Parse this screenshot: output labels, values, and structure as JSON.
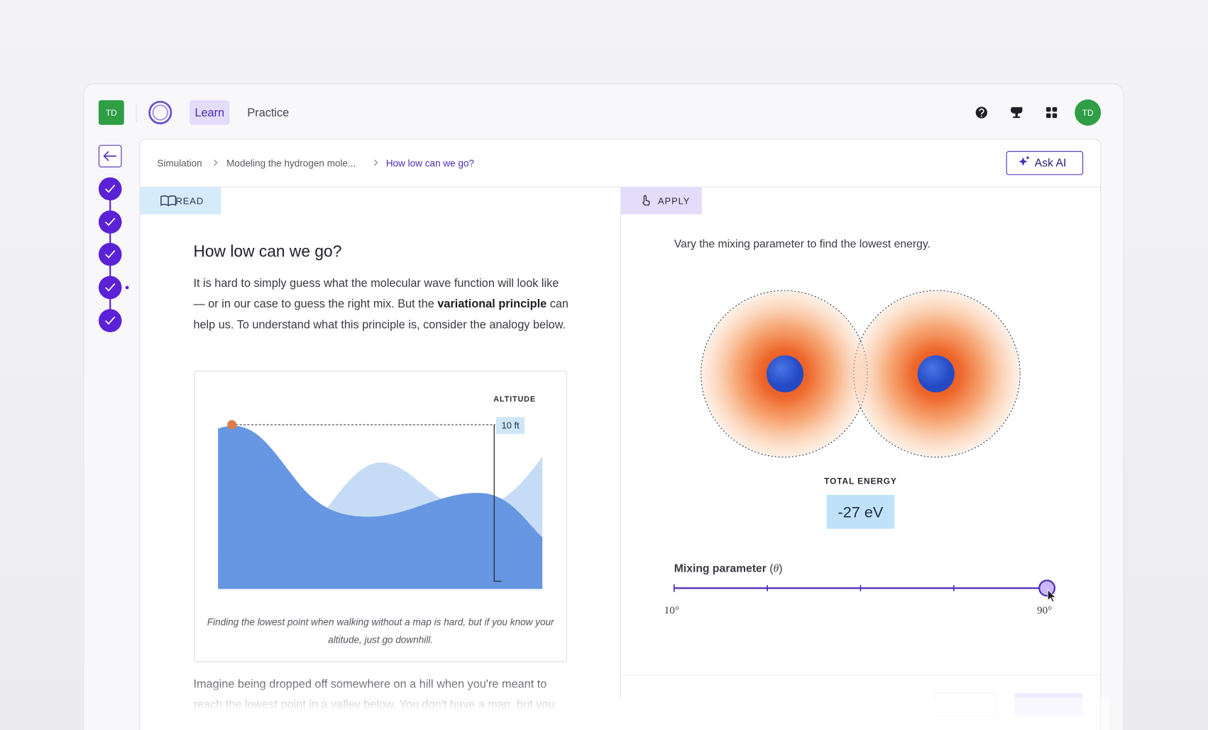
{
  "nav": {
    "avatar": "TD",
    "tabs": [
      "Learn",
      "Practice"
    ],
    "user_avatar": "TD"
  },
  "breadcrumb": [
    "Simulation",
    "Modeling the hydrogen mole...",
    "How low can we go?"
  ],
  "ask_ai": "Ask AI",
  "read": {
    "tab": "READ",
    "title": "How low can we go?",
    "paragraph": {
      "before": "It is hard to simply guess what the molecular wave function will look like — or in our case to guess the right mix. But the ",
      "bold": "variational principle",
      "after": " can help us. To understand what this principle is, consider the analogy below."
    },
    "figure": {
      "label": "ALTITUDE",
      "value": "10 ft",
      "caption": "Finding the lowest point when walking without a map is hard, but if you know your altitude, just go downhill."
    },
    "continuation": "Imagine being dropped off somewhere on a hill when you're meant to reach the lowest point in a valley below. You don't have a map, but you"
  },
  "apply": {
    "tab": "APPLY",
    "instruction": "Vary the mixing parameter to find the lowest energy.",
    "energy_label": "TOTAL ENERGY",
    "energy_value": "-27 eV",
    "slider": {
      "label": "Mixing parameter",
      "symbol": "θ",
      "min_label": "10°",
      "max_label": "90°"
    }
  }
}
